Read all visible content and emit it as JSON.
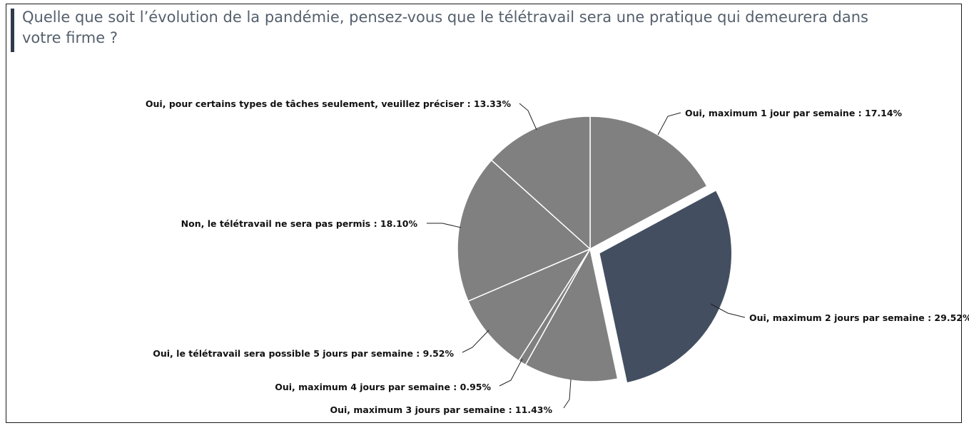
{
  "title": "Quelle que soit l’évolution de la pandémie, pensez-vous que le télétravail sera une pratique qui demeurera dans votre firme ?",
  "chart_data": {
    "type": "pie",
    "slices": [
      {
        "label": "Oui, maximum 1 jour par semaine  : 17.14%",
        "value": 17.14,
        "color": "#808080",
        "exploded": false
      },
      {
        "label": "Oui, maximum 2 jours par semaine  : 29.52%",
        "value": 29.52,
        "color": "#434f60",
        "exploded": true
      },
      {
        "label": "Oui, maximum 3 jours par semaine : 11.43%",
        "value": 11.43,
        "color": "#808080",
        "exploded": false
      },
      {
        "label": "Oui, maximum 4 jours par semaine : 0.95%",
        "value": 0.95,
        "color": "#808080",
        "exploded": false
      },
      {
        "label": "Oui, le télétravail sera possible 5 jours par semaine : 9.52%",
        "value": 9.52,
        "color": "#808080",
        "exploded": false
      },
      {
        "label": "Non, le télétravail ne sera pas permis : 18.10%",
        "value": 18.1,
        "color": "#808080",
        "exploded": false
      },
      {
        "label": "Oui, pour certains types de tâches seulement, veuillez préciser : 13.33%",
        "value": 13.33,
        "color": "#808080",
        "exploded": false
      }
    ]
  }
}
